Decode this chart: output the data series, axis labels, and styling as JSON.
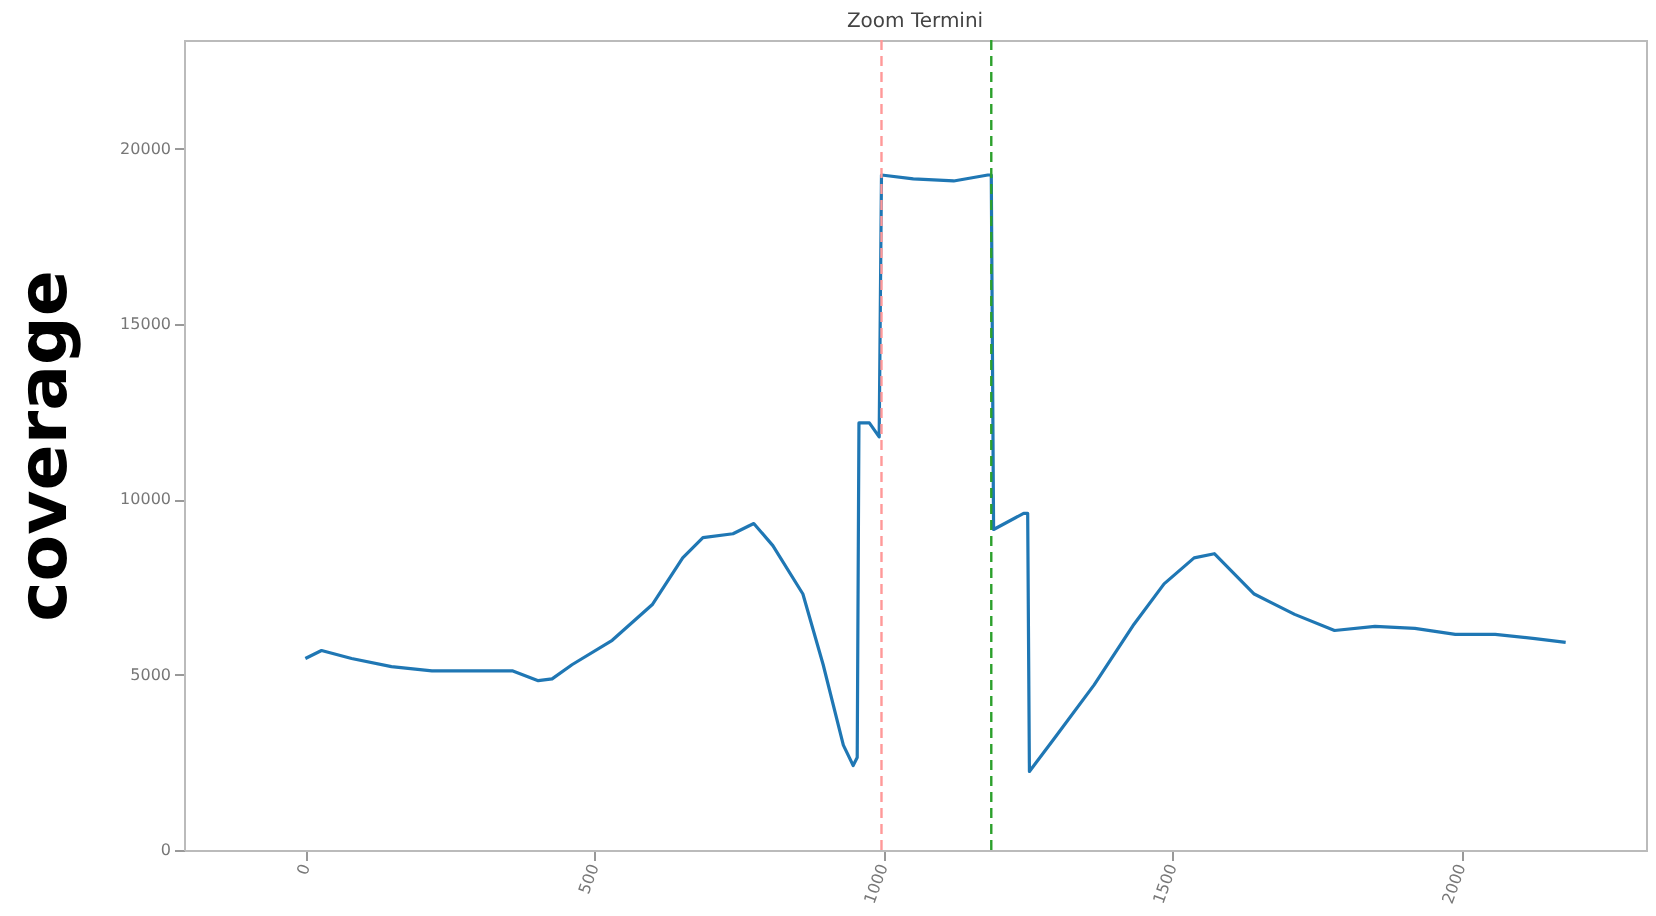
{
  "chart_data": {
    "type": "line",
    "title": "Zoom Termini",
    "ylabel": "coverage",
    "x": [
      0,
      28,
      80,
      149,
      219,
      288,
      358,
      403,
      427,
      462,
      531,
      601,
      653,
      688,
      740,
      776,
      809,
      861,
      896,
      931,
      948,
      955,
      958,
      976,
      993,
      997,
      1052,
      1122,
      1181,
      1187,
      1191,
      1243,
      1250,
      1253,
      1295,
      1365,
      1434,
      1486,
      1538,
      1573,
      1642,
      1712,
      1781,
      1851,
      1920,
      1990,
      2059,
      2128,
      2181
    ],
    "series": [
      {
        "color": "#1f77b4",
        "values": [
          5460,
          5690,
          5460,
          5230,
          5110,
          5110,
          5110,
          4830,
          4880,
          5290,
          5980,
          7010,
          8330,
          8910,
          9020,
          9310,
          8680,
          7300,
          5290,
          2990,
          2410,
          2640,
          12180,
          12180,
          11780,
          19250,
          19140,
          19080,
          19250,
          19250,
          9140,
          9600,
          9600,
          2240,
          3160,
          4710,
          6440,
          7590,
          8330,
          8450,
          7300,
          6720,
          6260,
          6380,
          6320,
          6150,
          6150,
          6030,
          5920
        ]
      }
    ],
    "xlim": [
      -210,
      2320
    ],
    "ylim": [
      0,
      23100
    ],
    "xticks": [
      0,
      500,
      1000,
      1500,
      2000
    ],
    "yticks": [
      0,
      5000,
      10000,
      15000,
      20000
    ],
    "ref_lines": [
      {
        "axis": "x",
        "value": 997,
        "color": "#ff9999",
        "line_style": "dashed"
      },
      {
        "axis": "x",
        "value": 1187,
        "color": "#2ca02c",
        "line_style": "dashed"
      }
    ],
    "grid": false,
    "marker": "none",
    "line_style": "solid"
  }
}
